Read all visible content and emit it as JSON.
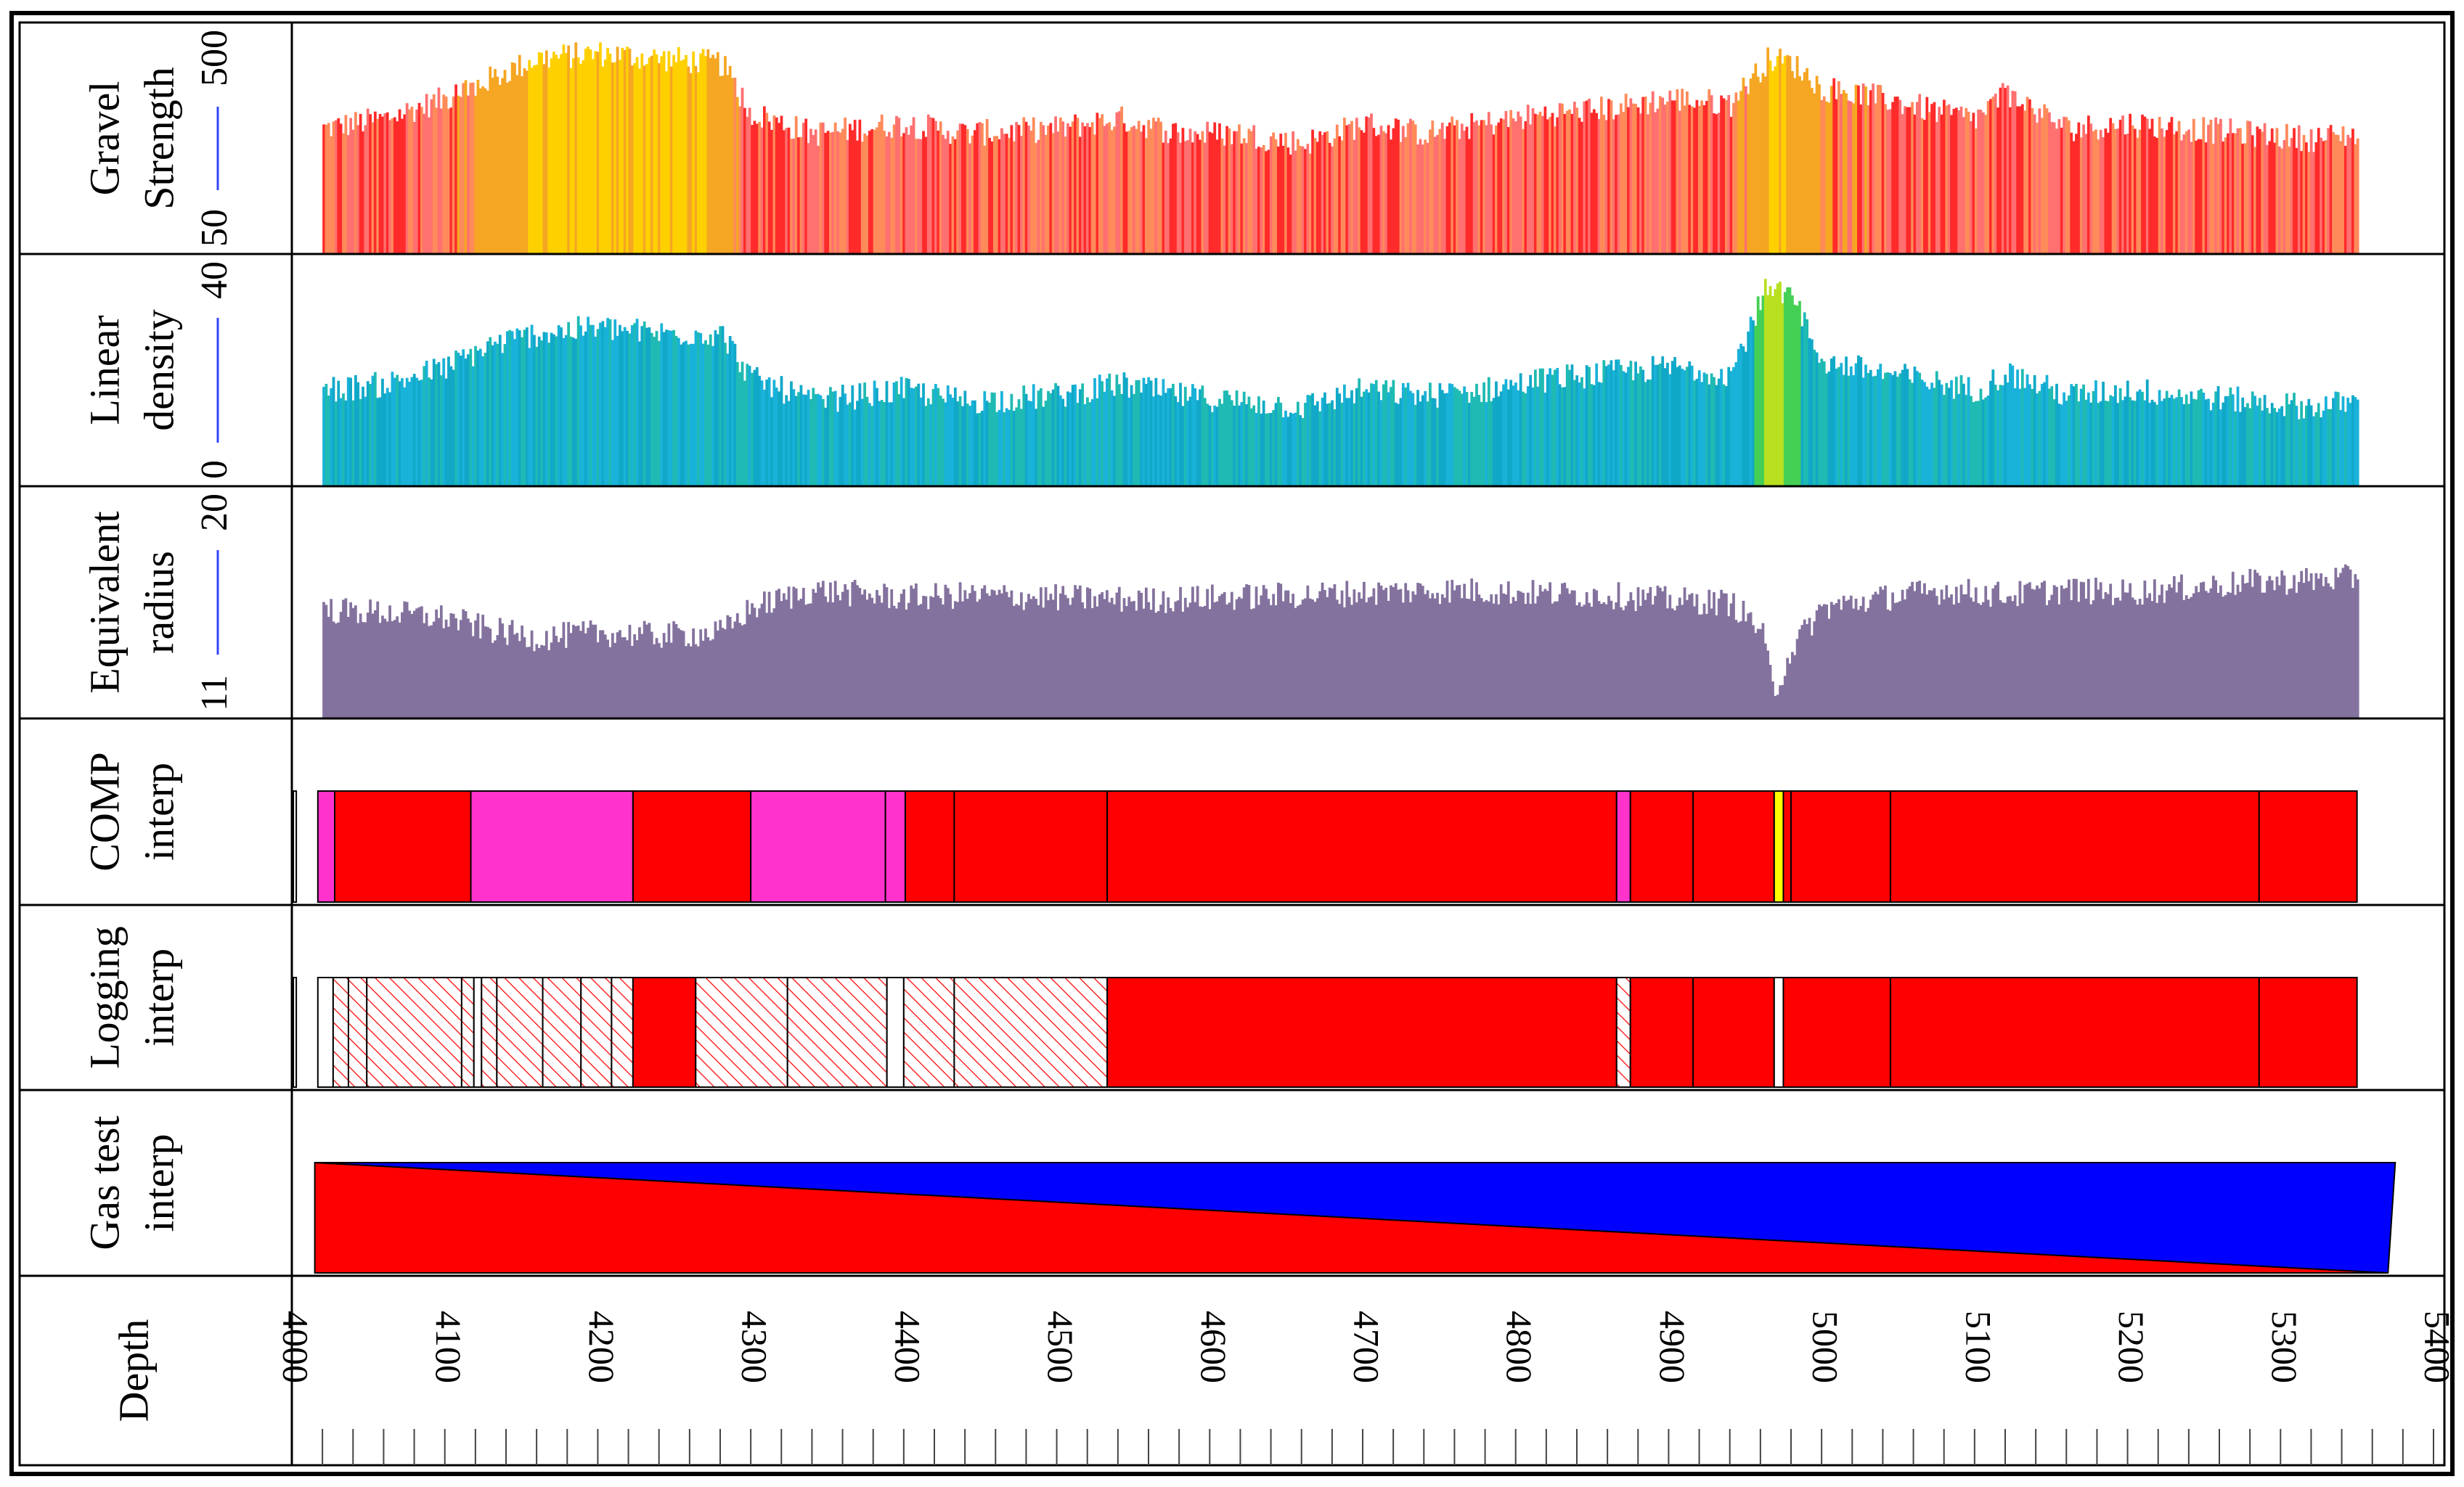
{
  "chart_data": {
    "type": "well_log",
    "depth_axis": {
      "label": "Depth",
      "range": [
        4000,
        5400
      ],
      "tick_values": [
        4000,
        4100,
        4200,
        4300,
        4400,
        4500,
        4600,
        4700,
        4800,
        4900,
        5000,
        5100,
        5200,
        5300,
        5400
      ],
      "tick_labels": [
        "4000",
        "4100",
        "4200",
        "4300",
        "4400",
        "4500",
        "4600",
        "4700",
        "4800",
        "4900",
        "5000",
        "5100",
        "5200",
        "5300",
        "5400"
      ]
    },
    "tracks": [
      {
        "id": "gravel",
        "type": "bar",
        "label_lines": [
          "Gravel",
          "Strength"
        ],
        "scale_min_label": "50",
        "scale_max_label": "500",
        "range": [
          50,
          500
        ],
        "data_depth_range": [
          4020,
          5350
        ],
        "profile": [
          [
            4020,
            300
          ],
          [
            4060,
            320
          ],
          [
            4100,
            360
          ],
          [
            4130,
            400
          ],
          [
            4160,
            440
          ],
          [
            4200,
            450
          ],
          [
            4240,
            440
          ],
          [
            4280,
            430
          ],
          [
            4300,
            330
          ],
          [
            4340,
            290
          ],
          [
            4400,
            310
          ],
          [
            4440,
            290
          ],
          [
            4500,
            300
          ],
          [
            4540,
            320
          ],
          [
            4580,
            290
          ],
          [
            4620,
            290
          ],
          [
            4660,
            270
          ],
          [
            4700,
            310
          ],
          [
            4740,
            290
          ],
          [
            4780,
            310
          ],
          [
            4820,
            330
          ],
          [
            4860,
            340
          ],
          [
            4900,
            360
          ],
          [
            4940,
            350
          ],
          [
            4965,
            440
          ],
          [
            4980,
            430
          ],
          [
            5000,
            380
          ],
          [
            5040,
            360
          ],
          [
            5080,
            330
          ],
          [
            5100,
            320
          ],
          [
            5120,
            370
          ],
          [
            5160,
            300
          ],
          [
            5200,
            310
          ],
          [
            5240,
            300
          ],
          [
            5280,
            290
          ],
          [
            5320,
            280
          ],
          [
            5350,
            290
          ]
        ],
        "colors": [
          "#ff2a2a",
          "#ff7070",
          "#ff8a5a",
          "#f5a623",
          "#ffd000"
        ]
      },
      {
        "id": "linear_density",
        "type": "bar",
        "label_lines": [
          "Linear",
          "density"
        ],
        "scale_min_label": "0",
        "scale_max_label": "40",
        "range": [
          0,
          40
        ],
        "data_depth_range": [
          4020,
          5350
        ],
        "profile": [
          [
            4020,
            17
          ],
          [
            4060,
            18
          ],
          [
            4100,
            21
          ],
          [
            4130,
            25
          ],
          [
            4160,
            27
          ],
          [
            4200,
            28
          ],
          [
            4240,
            27
          ],
          [
            4280,
            27
          ],
          [
            4300,
            19
          ],
          [
            4340,
            15
          ],
          [
            4400,
            17
          ],
          [
            4440,
            15
          ],
          [
            4500,
            16
          ],
          [
            4540,
            18
          ],
          [
            4580,
            16
          ],
          [
            4620,
            15
          ],
          [
            4660,
            14
          ],
          [
            4700,
            17
          ],
          [
            4740,
            16
          ],
          [
            4780,
            17
          ],
          [
            4820,
            19
          ],
          [
            4860,
            20
          ],
          [
            4900,
            21
          ],
          [
            4940,
            20
          ],
          [
            4965,
            36
          ],
          [
            4980,
            33
          ],
          [
            5000,
            22
          ],
          [
            5040,
            20
          ],
          [
            5080,
            18
          ],
          [
            5100,
            17
          ],
          [
            5120,
            20
          ],
          [
            5160,
            16
          ],
          [
            5200,
            17
          ],
          [
            5240,
            16
          ],
          [
            5280,
            15
          ],
          [
            5320,
            14
          ],
          [
            5350,
            15
          ]
        ],
        "colors": [
          "#19b2d9",
          "#11a8c8",
          "#1fbab3",
          "#22c08c",
          "#44cf55",
          "#b8e020"
        ]
      },
      {
        "id": "equivalent_radius",
        "type": "bar",
        "label_lines": [
          "Equivalent",
          "radius"
        ],
        "scale_min_label": "11",
        "scale_max_label": "20",
        "range": [
          11,
          20
        ],
        "data_depth_range": [
          4020,
          5350
        ],
        "profile": [
          [
            4020,
            15.3
          ],
          [
            4060,
            15.2
          ],
          [
            4100,
            15.0
          ],
          [
            4130,
            14.5
          ],
          [
            4160,
            14.2
          ],
          [
            4200,
            14.4
          ],
          [
            4240,
            14.3
          ],
          [
            4280,
            14.4
          ],
          [
            4300,
            15.4
          ],
          [
            4340,
            16.1
          ],
          [
            4400,
            15.8
          ],
          [
            4440,
            15.9
          ],
          [
            4500,
            15.8
          ],
          [
            4560,
            15.7
          ],
          [
            4600,
            15.8
          ],
          [
            4660,
            15.9
          ],
          [
            4700,
            16.0
          ],
          [
            4760,
            16.1
          ],
          [
            4800,
            16.0
          ],
          [
            4860,
            15.9
          ],
          [
            4900,
            15.7
          ],
          [
            4940,
            15.6
          ],
          [
            4960,
            14.5
          ],
          [
            4968,
            12.0
          ],
          [
            4980,
            13.8
          ],
          [
            5000,
            15.4
          ],
          [
            5040,
            15.8
          ],
          [
            5080,
            16.1
          ],
          [
            5120,
            15.9
          ],
          [
            5160,
            16.1
          ],
          [
            5200,
            16.0
          ],
          [
            5240,
            16.2
          ],
          [
            5280,
            16.4
          ],
          [
            5320,
            16.5
          ],
          [
            5350,
            16.6
          ]
        ],
        "color": "#84729e"
      },
      {
        "id": "comp_interp",
        "type": "interval",
        "label_lines": [
          "COMP",
          "interp"
        ],
        "intervals": [
          {
            "from": 4017,
            "to": 4028,
            "color": "#ff33cc"
          },
          {
            "from": 4028,
            "to": 4117,
            "color": "#ff0000"
          },
          {
            "from": 4117,
            "to": 4223,
            "color": "#ff33cc"
          },
          {
            "from": 4223,
            "to": 4300,
            "color": "#ff0000"
          },
          {
            "from": 4300,
            "to": 4388,
            "color": "#ff33cc"
          },
          {
            "from": 4388,
            "to": 4401,
            "color": "#ff33cc"
          },
          {
            "from": 4401,
            "to": 4433,
            "color": "#ff0000"
          },
          {
            "from": 4433,
            "to": 4533,
            "color": "#ff0000"
          },
          {
            "from": 4533,
            "to": 4866,
            "color": "#ff0000"
          },
          {
            "from": 4866,
            "to": 4875,
            "color": "#ff33cc"
          },
          {
            "from": 4875,
            "to": 4916,
            "color": "#ff0000"
          },
          {
            "from": 4916,
            "to": 4969,
            "color": "#ff0000"
          },
          {
            "from": 4969,
            "to": 4975,
            "color": "#ffff00"
          },
          {
            "from": 4975,
            "to": 4980,
            "color": "#ff0000"
          },
          {
            "from": 4980,
            "to": 5045,
            "color": "#ff0000"
          },
          {
            "from": 5045,
            "to": 5286,
            "color": "#ff0000"
          },
          {
            "from": 5286,
            "to": 5350,
            "color": "#ff0000"
          }
        ]
      },
      {
        "id": "logging_interp",
        "type": "interval",
        "label_lines": [
          "Logging",
          "interp"
        ],
        "intervals": [
          {
            "from": 4017,
            "to": 4027,
            "color": "#ffffff"
          },
          {
            "from": 4027,
            "to": 4037,
            "color": "hatch"
          },
          {
            "from": 4037,
            "to": 4049,
            "color": "hatch"
          },
          {
            "from": 4049,
            "to": 4111,
            "color": "hatch"
          },
          {
            "from": 4111,
            "to": 4119,
            "color": "hatch"
          },
          {
            "from": 4119,
            "to": 4124,
            "color": "#ffffff"
          },
          {
            "from": 4124,
            "to": 4134,
            "color": "hatch"
          },
          {
            "from": 4134,
            "to": 4164,
            "color": "hatch"
          },
          {
            "from": 4164,
            "to": 4189,
            "color": "hatch"
          },
          {
            "from": 4189,
            "to": 4209,
            "color": "hatch"
          },
          {
            "from": 4209,
            "to": 4223,
            "color": "hatch"
          },
          {
            "from": 4223,
            "to": 4264,
            "color": "#ff0000"
          },
          {
            "from": 4264,
            "to": 4324,
            "color": "hatch"
          },
          {
            "from": 4324,
            "to": 4389,
            "color": "hatch"
          },
          {
            "from": 4389,
            "to": 4400,
            "color": "#ffffff"
          },
          {
            "from": 4400,
            "to": 4433,
            "color": "hatch"
          },
          {
            "from": 4433,
            "to": 4533,
            "color": "hatch"
          },
          {
            "from": 4533,
            "to": 4866,
            "color": "#ff0000"
          },
          {
            "from": 4866,
            "to": 4875,
            "color": "hatch"
          },
          {
            "from": 4875,
            "to": 4916,
            "color": "#ff0000"
          },
          {
            "from": 4916,
            "to": 4969,
            "color": "#ff0000"
          },
          {
            "from": 4969,
            "to": 4975,
            "color": "#ffffff"
          },
          {
            "from": 4975,
            "to": 5045,
            "color": "#ff0000"
          },
          {
            "from": 5045,
            "to": 5286,
            "color": "#ff0000"
          },
          {
            "from": 5286,
            "to": 5350,
            "color": "#ff0000"
          }
        ]
      },
      {
        "id": "gas_test_interp",
        "type": "triangle_split",
        "label_lines": [
          "Gas test",
          "interp"
        ],
        "depth_range": [
          4015,
          5375
        ],
        "upper_color": "#0000ff",
        "lower_color": "#ff0000"
      }
    ]
  }
}
